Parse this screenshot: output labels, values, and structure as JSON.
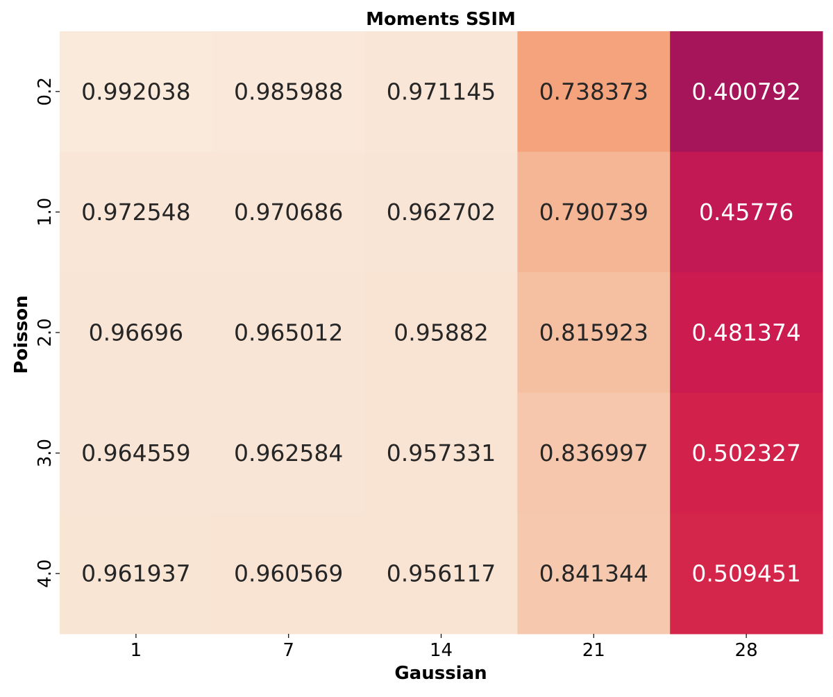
{
  "chart_data": {
    "type": "heatmap",
    "title": "Moments SSIM",
    "xlabel": "Gaussian",
    "ylabel": "Poisson",
    "x_categories": [
      "1",
      "7",
      "14",
      "21",
      "28"
    ],
    "y_categories": [
      "0.2",
      "1.0",
      "2.0",
      "3.0",
      "4.0"
    ],
    "cell_labels": [
      [
        "0.992038",
        "0.985988",
        "0.971145",
        "0.738373",
        "0.400792"
      ],
      [
        "0.972548",
        "0.970686",
        "0.962702",
        "0.790739",
        "0.45776"
      ],
      [
        "0.96696",
        "0.965012",
        "0.95882",
        "0.815923",
        "0.481374"
      ],
      [
        "0.964559",
        "0.962584",
        "0.957331",
        "0.836997",
        "0.502327"
      ],
      [
        "0.961937",
        "0.960569",
        "0.956117",
        "0.841344",
        "0.509451"
      ]
    ],
    "values": [
      [
        0.992038,
        0.985988,
        0.971145,
        0.738373,
        0.400792
      ],
      [
        0.972548,
        0.970686,
        0.962702,
        0.790739,
        0.45776
      ],
      [
        0.96696,
        0.965012,
        0.95882,
        0.815923,
        0.481374
      ],
      [
        0.964559,
        0.962584,
        0.957331,
        0.836997,
        0.502327
      ],
      [
        0.961937,
        0.960569,
        0.956117,
        0.841344,
        0.509451
      ]
    ],
    "colormap": "rocket_r",
    "colorbar": false,
    "grid": false
  }
}
